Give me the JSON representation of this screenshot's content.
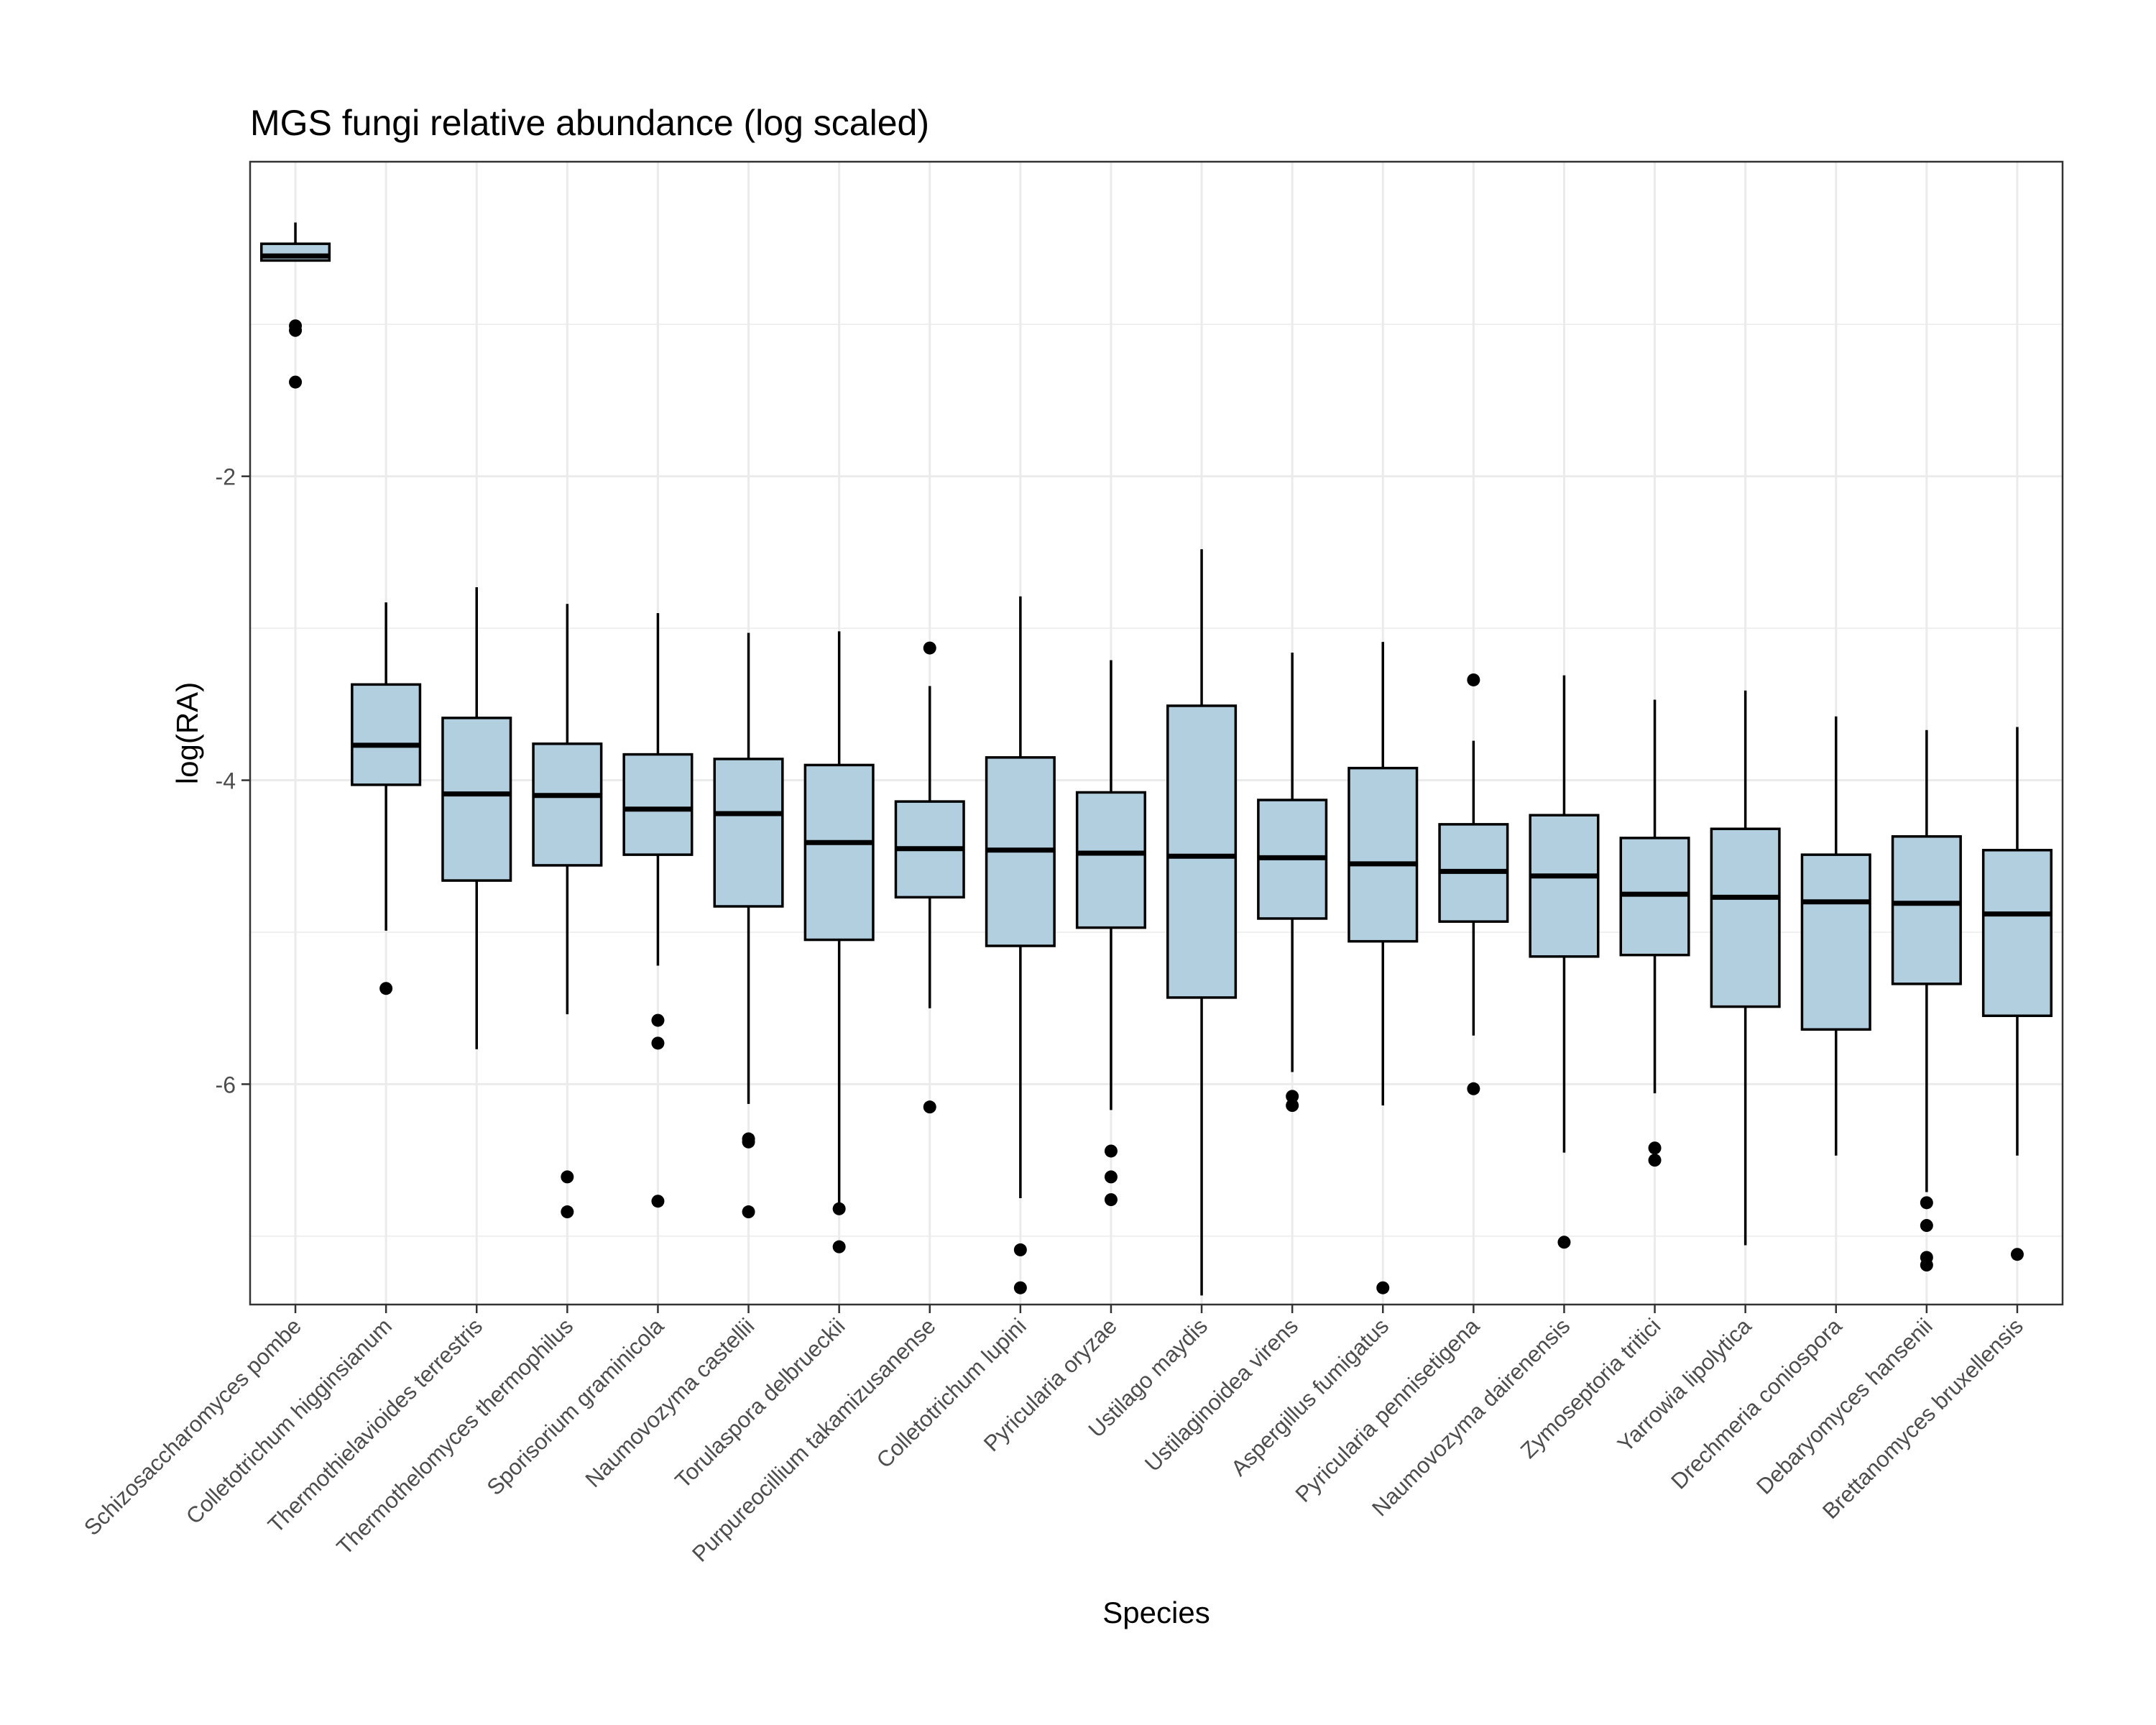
{
  "chart_data": {
    "type": "boxplot",
    "title": "MGS fungi relative abundance (log scaled)",
    "xlabel": "Species",
    "ylabel": "log(RA)",
    "ylim": [
      -7.45,
      0.07
    ],
    "yticks": [
      -2,
      -4,
      -6
    ],
    "grid": true,
    "colors": {
      "box_fill": "#b2cfdf",
      "stroke": "#000000",
      "grid": "#ebebeb",
      "panel_border": "#333333"
    },
    "categories": [
      "Schizosaccharomyces pombe",
      "Colletotrichum higginsianum",
      "Thermothielavioides terrestris",
      "Thermothelomyces thermophilus",
      "Sporisorium graminicola",
      "Naumovozyma castellii",
      "Torulaspora delbrueckii",
      "Purpureocillium takamizusanense",
      "Colletotrichum lupini",
      "Pyricularia oryzae",
      "Ustilago maydis",
      "Ustilaginoidea virens",
      "Aspergillus fumigatus",
      "Pyricularia pennisetigena",
      "Naumovozyma dairenensis",
      "Zymoseptoria tritici",
      "Yarrowia lipolytica",
      "Drechmeria coniospora",
      "Debaryomyces hansenii",
      "Brettanomyces bruxellensis"
    ],
    "boxes": [
      {
        "whisker_low": -0.58,
        "q1": -0.58,
        "median": -0.55,
        "q3": -0.47,
        "whisker_high": -0.33,
        "outliers": [
          -1.01,
          -1.04,
          -1.38
        ]
      },
      {
        "whisker_low": -4.99,
        "q1": -4.03,
        "median": -3.77,
        "q3": -3.37,
        "whisker_high": -2.83,
        "outliers": [
          -5.37
        ]
      },
      {
        "whisker_low": -5.77,
        "q1": -4.66,
        "median": -4.09,
        "q3": -3.59,
        "whisker_high": -2.73,
        "outliers": []
      },
      {
        "whisker_low": -5.54,
        "q1": -4.56,
        "median": -4.1,
        "q3": -3.76,
        "whisker_high": -2.84,
        "outliers": [
          -6.61,
          -6.84
        ]
      },
      {
        "whisker_low": -5.22,
        "q1": -4.49,
        "median": -4.19,
        "q3": -3.83,
        "whisker_high": -2.9,
        "outliers": [
          -5.58,
          -5.73,
          -6.77
        ]
      },
      {
        "whisker_low": -6.13,
        "q1": -4.83,
        "median": -4.22,
        "q3": -3.86,
        "whisker_high": -3.03,
        "outliers": [
          -6.36,
          -6.38,
          -6.84
        ]
      },
      {
        "whisker_low": -6.81,
        "q1": -5.05,
        "median": -4.41,
        "q3": -3.9,
        "whisker_high": -3.02,
        "outliers": [
          -6.82,
          -7.07
        ]
      },
      {
        "whisker_low": -5.5,
        "q1": -4.77,
        "median": -4.45,
        "q3": -4.14,
        "whisker_high": -3.38,
        "outliers": [
          -3.13,
          -6.15
        ]
      },
      {
        "whisker_low": -6.75,
        "q1": -5.09,
        "median": -4.46,
        "q3": -3.85,
        "whisker_high": -2.79,
        "outliers": [
          -7.09,
          -7.34
        ]
      },
      {
        "whisker_low": -6.17,
        "q1": -4.97,
        "median": -4.48,
        "q3": -4.08,
        "whisker_high": -3.21,
        "outliers": [
          -6.44,
          -6.61,
          -6.76
        ]
      },
      {
        "whisker_low": -7.39,
        "q1": -5.43,
        "median": -4.5,
        "q3": -3.51,
        "whisker_high": -2.48,
        "outliers": []
      },
      {
        "whisker_low": -5.92,
        "q1": -4.91,
        "median": -4.51,
        "q3": -4.13,
        "whisker_high": -3.16,
        "outliers": [
          -6.08,
          -6.14
        ]
      },
      {
        "whisker_low": -6.14,
        "q1": -5.06,
        "median": -4.55,
        "q3": -3.92,
        "whisker_high": -3.09,
        "outliers": [
          -7.34
        ]
      },
      {
        "whisker_low": -5.68,
        "q1": -4.93,
        "median": -4.6,
        "q3": -4.29,
        "whisker_high": -3.74,
        "outliers": [
          -3.34,
          -6.03
        ]
      },
      {
        "whisker_low": -6.45,
        "q1": -5.16,
        "median": -4.63,
        "q3": -4.23,
        "whisker_high": -3.31,
        "outliers": [
          -7.04
        ]
      },
      {
        "whisker_low": -6.06,
        "q1": -5.15,
        "median": -4.75,
        "q3": -4.38,
        "whisker_high": -3.47,
        "outliers": [
          -6.42,
          -6.5
        ]
      },
      {
        "whisker_low": -7.06,
        "q1": -5.49,
        "median": -4.77,
        "q3": -4.32,
        "whisker_high": -3.41,
        "outliers": []
      },
      {
        "whisker_low": -6.47,
        "q1": -5.64,
        "median": -4.8,
        "q3": -4.49,
        "whisker_high": -3.58,
        "outliers": []
      },
      {
        "whisker_low": -6.71,
        "q1": -5.34,
        "median": -4.81,
        "q3": -4.37,
        "whisker_high": -3.67,
        "outliers": [
          -6.78,
          -6.93,
          -7.14,
          -7.19
        ]
      },
      {
        "whisker_low": -6.47,
        "q1": -5.55,
        "median": -4.88,
        "q3": -4.46,
        "whisker_high": -3.65,
        "outliers": [
          -7.12
        ]
      }
    ]
  }
}
